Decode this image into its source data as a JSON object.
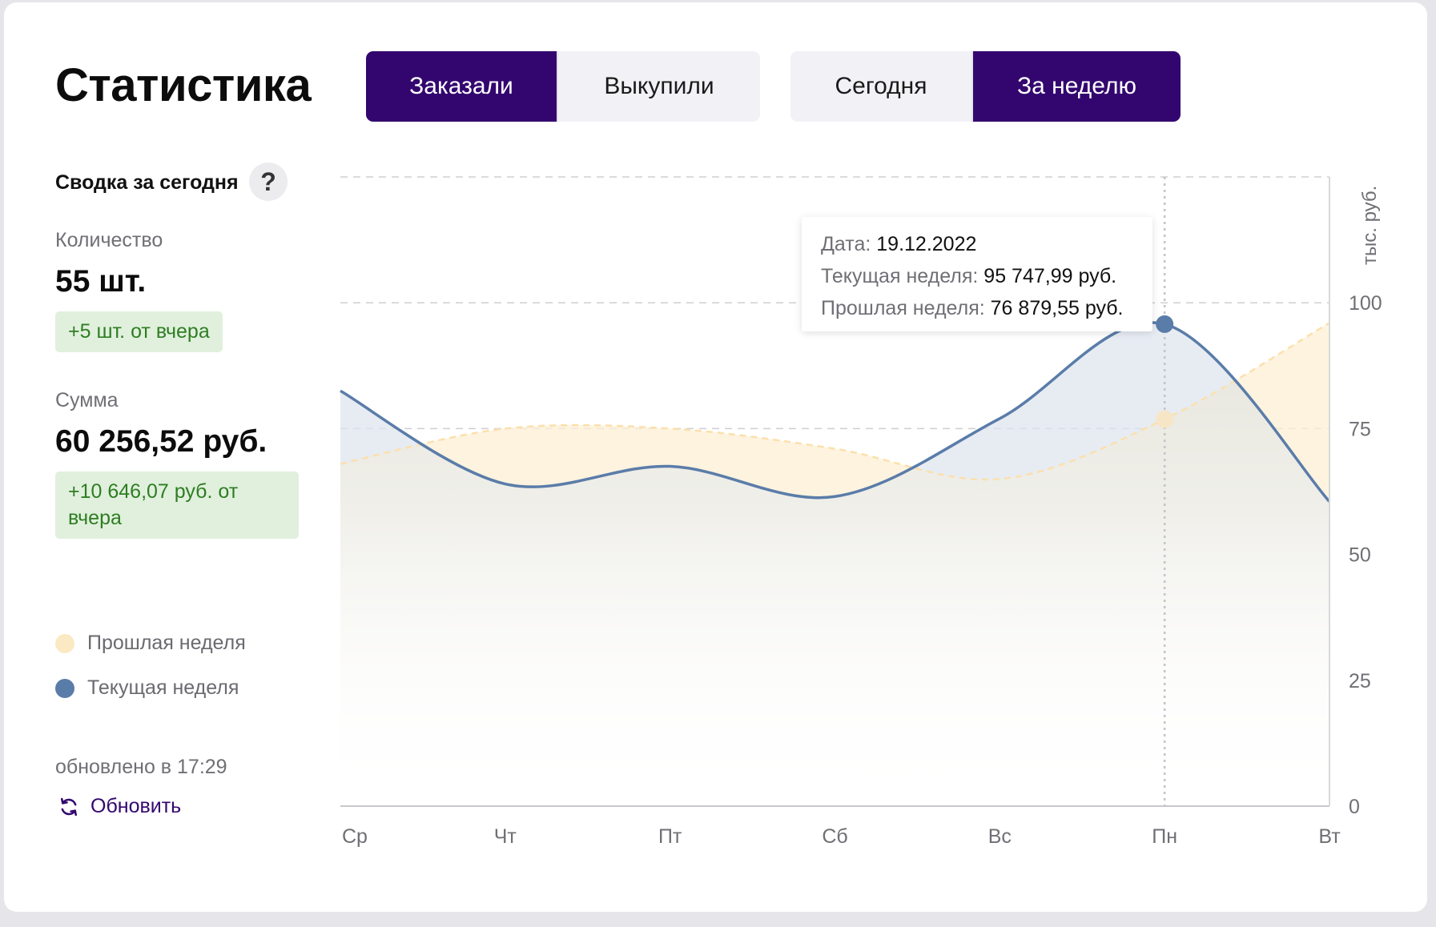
{
  "header": {
    "title": "Статистика",
    "metric_tabs": [
      {
        "label": "Заказали",
        "active": true
      },
      {
        "label": "Выкупили",
        "active": false
      }
    ],
    "period_tabs": [
      {
        "label": "Сегодня",
        "active": false
      },
      {
        "label": "За неделю",
        "active": true
      }
    ]
  },
  "summary": {
    "title": "Сводка за сегодня",
    "help_icon": "?",
    "quantity_label": "Количество",
    "quantity_value": "55 шт.",
    "quantity_delta": "+5 шт. от вчера",
    "sum_label": "Сумма",
    "sum_value": "60 256,52 руб.",
    "sum_delta": "+10 646,07 руб. от вчера"
  },
  "legend": {
    "previous_week": "Прошлая неделя",
    "current_week": "Текущая неделя"
  },
  "footer": {
    "updated": "обновлено в 17:29",
    "refresh_label": "Обновить",
    "refresh_icon": "refresh-icon"
  },
  "tooltip": {
    "date_label": "Дата:",
    "date_value": "19.12.2022",
    "current_label": "Текущая неделя:",
    "current_value": "95 747,99 руб.",
    "previous_label": "Прошлая неделя:",
    "previous_value": "76 879,55 руб."
  },
  "colors": {
    "accent": "#33066f",
    "current_week": "#5a7ca9",
    "previous_week": "#fbe9c4",
    "badge_bg": "#e0f0dd",
    "badge_text": "#2f7d22"
  },
  "chart_data": {
    "type": "area",
    "categories": [
      "Ср",
      "Чт",
      "Пт",
      "Сб",
      "Вс",
      "Пн",
      "Вт"
    ],
    "series": [
      {
        "name": "Прошлая неделя",
        "values": [
          68,
          75,
          75,
          71,
          65,
          76.88,
          96
        ]
      },
      {
        "name": "Текущая неделя",
        "values": [
          82.5,
          64,
          67.5,
          61.5,
          77,
          95.75,
          60.5
        ]
      }
    ],
    "ylabel": "тыс. руб.",
    "yticks": [
      0,
      25,
      50,
      75,
      100
    ],
    "ylim": [
      0,
      125
    ],
    "y_axis_side": "right",
    "grid": true,
    "highlighted_category": "Пн"
  }
}
